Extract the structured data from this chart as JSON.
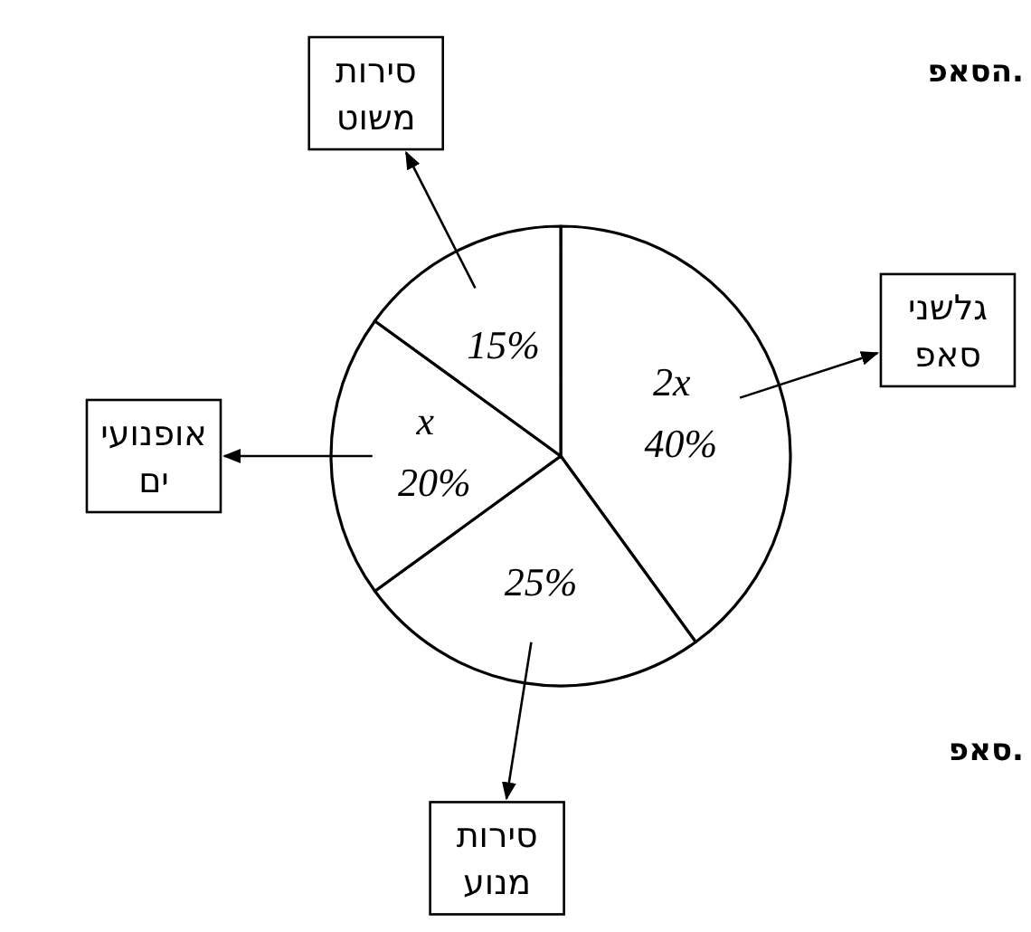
{
  "chart_data": {
    "type": "pie",
    "categories": [
      "גלשני סאפ",
      "סירות מנוע",
      "אופנועי ים",
      "סירות משוט"
    ],
    "values": [
      40,
      25,
      20,
      15
    ],
    "colors": [
      "#ffffff",
      "#ffffff",
      "#ffffff",
      "#ffffff"
    ],
    "value_labels": [
      "40%",
      "25%",
      "20%",
      "15%"
    ],
    "annotations": [
      {
        "text": "2x",
        "x": "גלשני סאפ"
      },
      {
        "text": "x",
        "x": "אופנועי ים"
      },
      "הסאפ.",
      "סאפ."
    ]
  }
}
